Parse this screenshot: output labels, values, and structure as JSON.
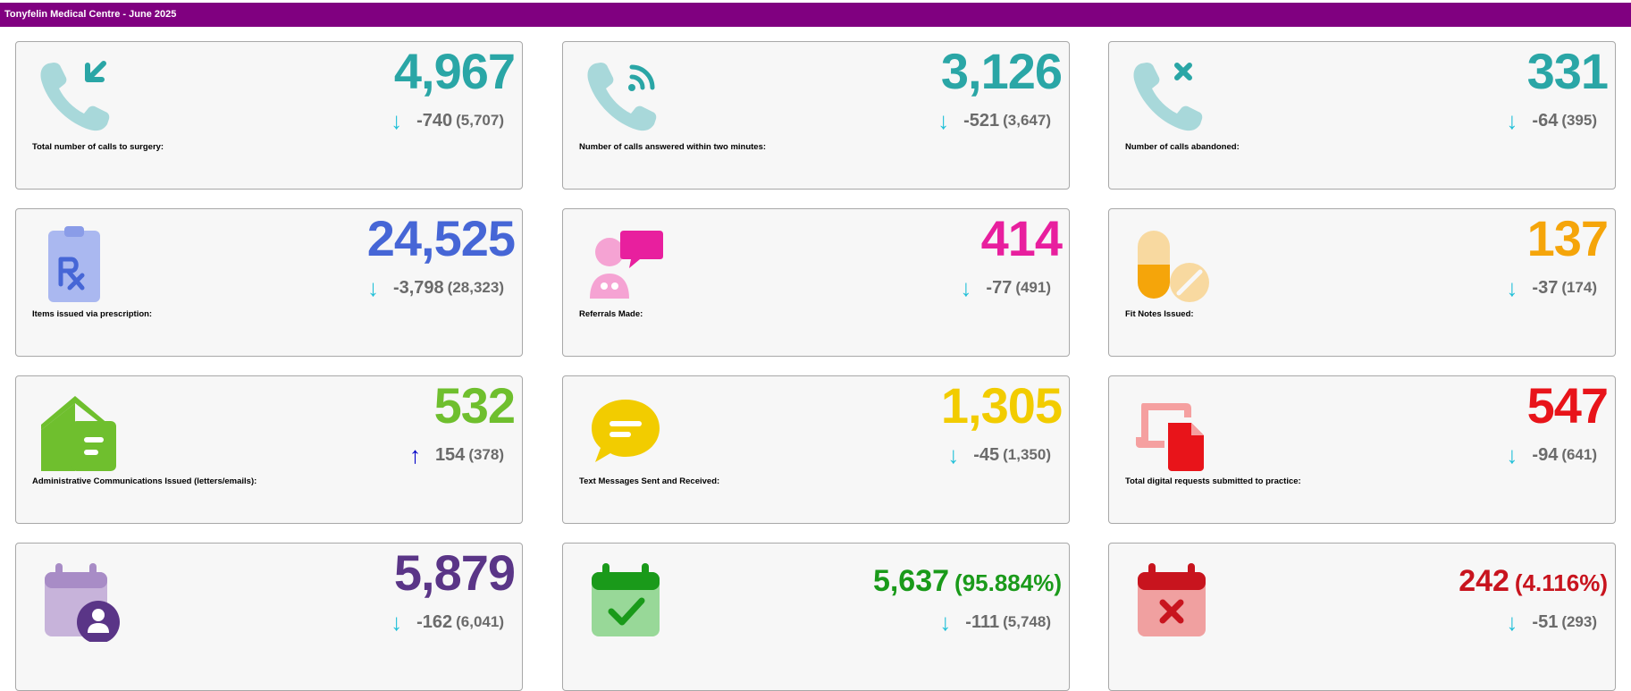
{
  "header": {
    "title": "Tonyfelin Medical Centre - June 2025"
  },
  "cards": [
    {
      "id": "total-calls",
      "value": "4,967",
      "pct": "",
      "value_color": "#2aa6a6",
      "direction": "down",
      "change": "-740",
      "previous": "(5,707)",
      "label": "Total number of calls to surgery:",
      "icon": "incoming-call-icon"
    },
    {
      "id": "calls-answered",
      "value": "3,126",
      "pct": "",
      "value_color": "#2aa6a6",
      "direction": "down",
      "change": "-521",
      "previous": "(3,647)",
      "label": "Number of calls answered within two minutes:",
      "icon": "call-answered-icon"
    },
    {
      "id": "calls-abandoned",
      "value": "331",
      "pct": "",
      "value_color": "#2aa6a6",
      "direction": "down",
      "change": "-64",
      "previous": "(395)",
      "label": "Number of calls abandoned:",
      "icon": "missed-call-icon"
    },
    {
      "id": "prescription-items",
      "value": "24,525",
      "pct": "",
      "value_color": "#4666d6",
      "direction": "down",
      "change": "-3,798",
      "previous": "(28,323)",
      "label": "Items issued via prescription:",
      "icon": "prescription-icon"
    },
    {
      "id": "referrals",
      "value": "414",
      "pct": "",
      "value_color": "#e81f9e",
      "direction": "down",
      "change": "-77",
      "previous": "(491)",
      "label": "Referrals Made:",
      "icon": "referral-icon"
    },
    {
      "id": "fit-notes",
      "value": "137",
      "pct": "",
      "value_color": "#f5a50a",
      "direction": "down",
      "change": "-37",
      "previous": "(174)",
      "label": "Fit Notes Issued:",
      "icon": "pills-icon"
    },
    {
      "id": "admin-comms",
      "value": "532",
      "pct": "",
      "value_color": "#6fbf2e",
      "direction": "up",
      "change": "154",
      "previous": "(378)",
      "label": "Administrative Communications Issued (letters/emails):",
      "icon": "mail-icon"
    },
    {
      "id": "text-messages",
      "value": "1,305",
      "pct": "",
      "value_color": "#f2cc00",
      "direction": "down",
      "change": "-45",
      "previous": "(1,350)",
      "label": "Text Messages Sent and Received:",
      "icon": "message-icon"
    },
    {
      "id": "digital-requests",
      "value": "547",
      "pct": "",
      "value_color": "#e8141a",
      "direction": "down",
      "change": "-94",
      "previous": "(641)",
      "label": "Total digital requests submitted to practice:",
      "icon": "digital-request-icon"
    },
    {
      "id": "appointments",
      "value": "5,879",
      "pct": "",
      "value_color": "#5a3587",
      "direction": "down",
      "change": "-162",
      "previous": "(6,041)",
      "label": "",
      "icon": "calendar-person-icon"
    },
    {
      "id": "appointments-attended",
      "value": "5,637",
      "pct": "(95.884%)",
      "value_color": "#1a9a1a",
      "direction": "down",
      "change": "-111",
      "previous": "(5,748)",
      "label": "",
      "icon": "calendar-check-icon"
    },
    {
      "id": "appointments-missed",
      "value": "242",
      "pct": "(4.116%)",
      "value_color": "#c8141e",
      "direction": "down",
      "change": "-51",
      "previous": "(293)",
      "label": "",
      "icon": "calendar-cross-icon"
    }
  ],
  "arrows": {
    "down": "↓",
    "up": "↑"
  }
}
